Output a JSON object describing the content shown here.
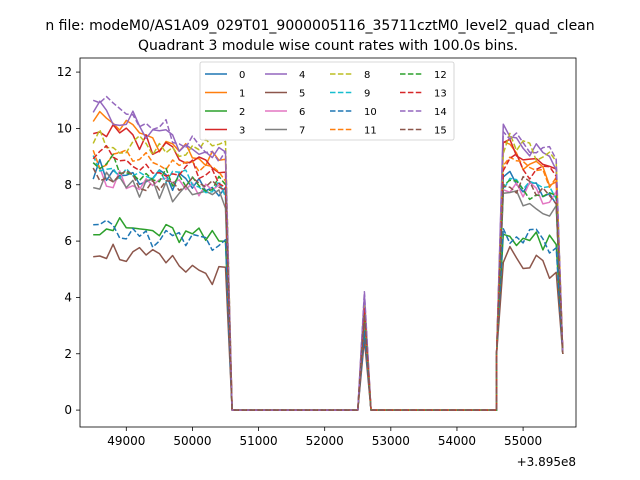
{
  "chart_data": {
    "type": "line",
    "suptitle": "n file: modeM0/AS1A09_029T01_9000005116_35711cztM0_level2_quad_clean",
    "title": "Quadrant 3 module wise count rates with 100.0s bins.",
    "xlabel": "",
    "ylabel": "",
    "x_offset_label": "+3.895e8",
    "xlim": [
      48300,
      55800
    ],
    "ylim": [
      -0.6,
      12.5
    ],
    "x_ticks": [
      49000,
      50000,
      51000,
      52000,
      53000,
      54000,
      55000
    ],
    "y_ticks": [
      0,
      2,
      4,
      6,
      8,
      10,
      12
    ],
    "grid": false,
    "legend_position": "top-center",
    "legend_columns": 4,
    "segments": [
      [
        48500,
        50500
      ],
      [
        54700,
        55500
      ]
    ],
    "segment_step": 100,
    "spike": {
      "x": [
        52500,
        52600,
        52700
      ],
      "base_x": [
        50600,
        52400,
        52800,
        54600
      ]
    },
    "series": [
      {
        "name": "0",
        "color": "#1f77b4",
        "dash": "solid",
        "level_a": 8.6,
        "level_b": 8.2,
        "spike": 3.6,
        "edge_a": 7.6,
        "edge_b": 7.2
      },
      {
        "name": "1",
        "color": "#ff7f0e",
        "dash": "solid",
        "level_a": 10.5,
        "level_b": 9.3,
        "spike": 3.9,
        "edge_a": 8.4,
        "edge_b": 7.4
      },
      {
        "name": "2",
        "color": "#2ca02c",
        "dash": "solid",
        "level_a": 6.6,
        "level_b": 6.3,
        "spike": 2.9,
        "edge_a": 5.9,
        "edge_b": 5.4
      },
      {
        "name": "3",
        "color": "#d62728",
        "dash": "solid",
        "level_a": 10.0,
        "level_b": 9.6,
        "spike": 3.8,
        "edge_a": 8.6,
        "edge_b": 8.0
      },
      {
        "name": "4",
        "color": "#9467bd",
        "dash": "solid",
        "level_a": 10.8,
        "level_b": 9.9,
        "spike": 4.1,
        "edge_a": 8.7,
        "edge_b": 7.9
      },
      {
        "name": "5",
        "color": "#8c564b",
        "dash": "solid",
        "level_a": 5.8,
        "level_b": 5.6,
        "spike": 2.5,
        "edge_a": 4.6,
        "edge_b": 4.5
      },
      {
        "name": "6",
        "color": "#e377c2",
        "dash": "solid",
        "level_a": 8.4,
        "level_b": 8.0,
        "spike": 3.4,
        "edge_a": 7.5,
        "edge_b": 7.0
      },
      {
        "name": "7",
        "color": "#7f7f7f",
        "dash": "solid",
        "level_a": 8.2,
        "level_b": 7.8,
        "spike": 3.3,
        "edge_a": 7.3,
        "edge_b": 6.8
      },
      {
        "name": "8",
        "color": "#bcbd22",
        "dash": "dashed",
        "level_a": 9.6,
        "level_b": 9.5,
        "spike": 3.7,
        "edge_a": 9.1,
        "edge_b": 8.5
      },
      {
        "name": "9",
        "color": "#17becf",
        "dash": "dashed",
        "level_a": 8.7,
        "level_b": 8.1,
        "spike": 3.5,
        "edge_a": 7.8,
        "edge_b": 7.1
      },
      {
        "name": "10",
        "color": "#1f77b4",
        "dash": "dashed",
        "level_a": 6.4,
        "level_b": 6.3,
        "spike": 2.8,
        "edge_a": 5.8,
        "edge_b": 5.6
      },
      {
        "name": "11",
        "color": "#ff7f0e",
        "dash": "dashed",
        "level_a": 9.0,
        "level_b": 8.7,
        "spike": 3.6,
        "edge_a": 8.3,
        "edge_b": 7.6
      },
      {
        "name": "12",
        "color": "#2ca02c",
        "dash": "dashed",
        "level_a": 8.8,
        "level_b": 8.0,
        "spike": 3.5,
        "edge_a": 7.9,
        "edge_b": 7.0
      },
      {
        "name": "13",
        "color": "#d62728",
        "dash": "dashed",
        "level_a": 9.1,
        "level_b": 8.9,
        "spike": 3.6,
        "edge_a": 8.2,
        "edge_b": 7.8
      },
      {
        "name": "14",
        "color": "#9467bd",
        "dash": "dashed",
        "level_a": 11.0,
        "level_b": 10.1,
        "spike": 4.2,
        "edge_a": 8.9,
        "edge_b": 8.2
      },
      {
        "name": "15",
        "color": "#8c564b",
        "dash": "dashed",
        "level_a": 8.5,
        "level_b": 8.1,
        "spike": 3.4,
        "edge_a": 7.6,
        "edge_b": 7.2
      }
    ]
  }
}
